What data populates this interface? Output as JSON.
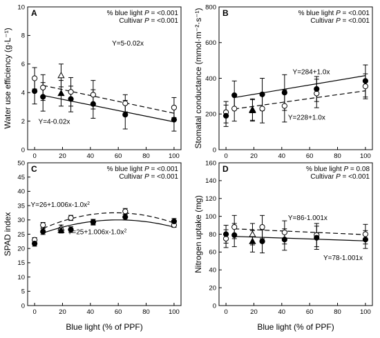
{
  "figure": {
    "xlabel_common": "Blue light (% of PPF)"
  },
  "chart_data": [
    {
      "type": "scatter",
      "panel": "A",
      "ylabel": "Water use efficiency (g·L⁻¹)",
      "ylim": [
        0,
        10
      ],
      "yticks": [
        0,
        2,
        4,
        6,
        8,
        10
      ],
      "xlim": [
        -5,
        105
      ],
      "xticks": [
        0,
        20,
        40,
        60,
        80,
        100
      ],
      "annotations": [
        "% blue light P = <0.001",
        "Cultivar P = <0.001"
      ],
      "series": [
        {
          "marker": "open-circle",
          "x": [
            0,
            6,
            26,
            42,
            65,
            100
          ],
          "y": [
            5.0,
            4.35,
            4.05,
            3.85,
            3.25,
            2.95
          ],
          "err": [
            0.75,
            0.9,
            1.0,
            1.0,
            0.6,
            0.7
          ]
        },
        {
          "marker": "filled-circle",
          "x": [
            0,
            6,
            26,
            42,
            65,
            100
          ],
          "y": [
            4.1,
            3.7,
            3.55,
            3.2,
            2.45,
            2.1
          ],
          "err": [
            0.9,
            1.0,
            0.9,
            1.0,
            1.0,
            0.8
          ]
        },
        {
          "marker": "open-triangle",
          "x": [
            19
          ],
          "y": [
            5.2
          ],
          "err": [
            0.8
          ]
        },
        {
          "marker": "filled-triangle",
          "x": [
            19
          ],
          "y": [
            3.95
          ],
          "err": [
            0.9
          ]
        }
      ],
      "fits": [
        {
          "style": "dashed",
          "label": "Y=5-0.02x",
          "x": [
            6,
            100
          ],
          "y": [
            4.5,
            2.55
          ]
        },
        {
          "style": "solid",
          "label": "Y=4-0.02x",
          "x": [
            6,
            100
          ],
          "y": [
            3.8,
            1.95
          ]
        }
      ]
    },
    {
      "type": "scatter",
      "panel": "B",
      "ylabel": "Stomatal conductance (mmol·m⁻²·s⁻¹)",
      "ylim": [
        0,
        800
      ],
      "yticks": [
        0,
        200,
        400,
        600,
        800
      ],
      "xlim": [
        -5,
        105
      ],
      "xticks": [
        0,
        20,
        40,
        60,
        80,
        100
      ],
      "annotations": [
        "% blue light P = <0.001",
        "Cultivar P = <0.001"
      ],
      "series": [
        {
          "marker": "open-circle",
          "x": [
            0,
            6,
            26,
            42,
            65,
            100
          ],
          "y": [
            210,
            230,
            230,
            245,
            315,
            355
          ],
          "err": [
            60,
            70,
            80,
            90,
            80,
            70
          ]
        },
        {
          "marker": "filled-circle",
          "x": [
            0,
            6,
            26,
            42,
            65,
            100
          ],
          "y": [
            190,
            305,
            310,
            320,
            340,
            385
          ],
          "err": [
            60,
            80,
            90,
            100,
            70,
            90
          ]
        },
        {
          "marker": "open-triangle",
          "x": [
            19
          ],
          "y": [
            225
          ],
          "err": [
            60
          ]
        },
        {
          "marker": "filled-triangle",
          "x": [
            19
          ],
          "y": [
            220
          ],
          "err": [
            60
          ]
        }
      ],
      "fits": [
        {
          "style": "solid",
          "label": "Y=284+1.0x",
          "x": [
            6,
            100
          ],
          "y": [
            292,
            415
          ]
        },
        {
          "style": "dashed",
          "label": "Y=228+1.0x",
          "x": [
            6,
            100
          ],
          "y": [
            228,
            330
          ]
        }
      ]
    },
    {
      "type": "scatter",
      "panel": "C",
      "ylabel": "SPAD index",
      "ylim": [
        0,
        50
      ],
      "yticks": [
        0,
        5,
        10,
        15,
        20,
        25,
        30,
        35,
        40,
        45,
        50
      ],
      "xlim": [
        -5,
        105
      ],
      "xticks": [
        0,
        20,
        40,
        60,
        80,
        100
      ],
      "annotations": [
        "% blue light P = <0.001",
        "Cultivar P = <0.001"
      ],
      "series": [
        {
          "marker": "open-circle",
          "x": [
            0,
            6,
            26,
            42,
            65,
            100
          ],
          "y": [
            23,
            28.2,
            30.7,
            29.3,
            33.0,
            28.2
          ],
          "err": [
            0.8,
            0.9,
            0.9,
            0.9,
            1.0,
            0.8
          ]
        },
        {
          "marker": "filled-circle",
          "x": [
            0,
            6,
            26,
            42,
            65,
            100
          ],
          "y": [
            21.7,
            25.9,
            26.6,
            29.2,
            31.0,
            29.5
          ],
          "err": [
            0.9,
            1.0,
            1.0,
            1.0,
            1.0,
            1.0
          ]
        },
        {
          "marker": "open-triangle",
          "x": [
            19
          ],
          "y": [
            27.2
          ],
          "err": [
            1.0
          ]
        },
        {
          "marker": "filled-triangle",
          "x": [
            19
          ],
          "y": [
            26.4
          ],
          "err": [
            1.0
          ]
        }
      ],
      "fits": [
        {
          "style": "dashed",
          "label": "Y=26+1.006x-1.0x²",
          "vertex_x": 58,
          "x": [
            6,
            100
          ],
          "y": [
            27.0,
            28.2
          ],
          "peak": 32.5
        },
        {
          "style": "solid",
          "label": "Y=25+1.006x-1.0x²",
          "vertex_x": 60,
          "x": [
            6,
            100
          ],
          "y": [
            25.4,
            28.8
          ],
          "peak": 30.0
        }
      ]
    },
    {
      "type": "scatter",
      "panel": "D",
      "ylabel": "Nitrogen uptake (mg)",
      "ylim": [
        0,
        160
      ],
      "yticks": [
        0,
        20,
        40,
        60,
        80,
        100,
        120,
        140,
        160
      ],
      "xlim": [
        -5,
        105
      ],
      "xticks": [
        0,
        20,
        40,
        60,
        80,
        100
      ],
      "annotations": [
        "% blue light P = 0.08",
        "Cultivar P = <0.001"
      ],
      "series": [
        {
          "marker": "open-circle",
          "x": [
            0,
            6,
            26,
            42,
            65,
            100
          ],
          "y": [
            75,
            88,
            88,
            82,
            79,
            80
          ],
          "err": [
            10,
            13,
            13,
            13,
            13,
            11
          ]
        },
        {
          "marker": "filled-circle",
          "x": [
            0,
            6,
            26,
            42,
            65,
            100
          ],
          "y": [
            80,
            79,
            72,
            74,
            76,
            74
          ],
          "err": [
            10,
            13,
            13,
            12,
            13,
            10
          ]
        },
        {
          "marker": "open-triangle",
          "x": [
            19
          ],
          "y": [
            80
          ],
          "err": [
            12
          ]
        },
        {
          "marker": "filled-triangle",
          "x": [
            19
          ],
          "y": [
            72
          ],
          "err": [
            12
          ]
        }
      ],
      "fits": [
        {
          "style": "dashed",
          "label": "Y=86-1.001x",
          "x": [
            6,
            100
          ],
          "y": [
            86,
            79.5
          ]
        },
        {
          "style": "solid",
          "label": "Y=78-1.001x",
          "x": [
            6,
            100
          ],
          "y": [
            77.5,
            72.5
          ]
        }
      ]
    }
  ]
}
